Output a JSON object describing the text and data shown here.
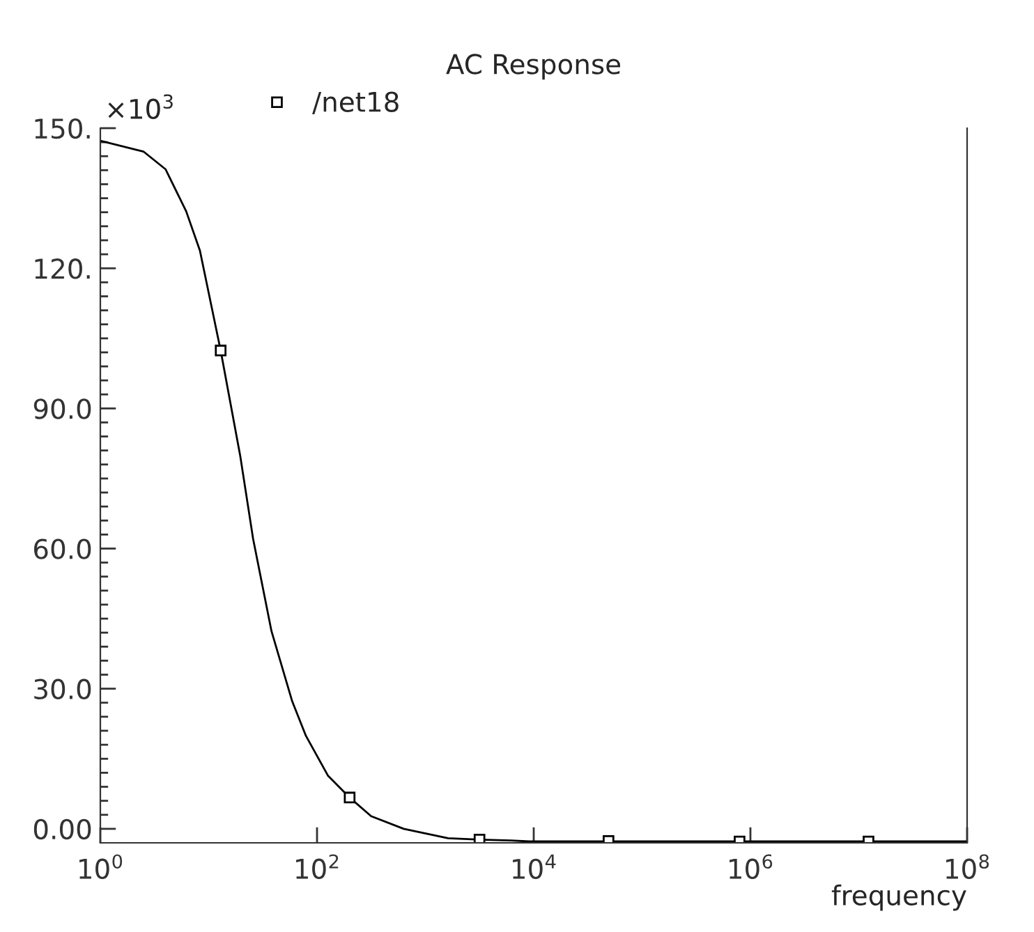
{
  "chart_data": {
    "type": "line",
    "title": "AC Response",
    "xlabel": "frequency",
    "annotations": [
      "×10$^{3}$"
    ],
    "log": "x",
    "xlim": [
      1,
      100000000
    ],
    "ylim": [
      -3,
      150
    ],
    "xticks": [
      {
        "value": 1,
        "label": "10$^{0}$"
      },
      {
        "value": 100,
        "label": "10$^{2}$"
      },
      {
        "value": 10000,
        "label": "10$^{4}$"
      },
      {
        "value": 1000000,
        "label": "10$^{6}$"
      },
      {
        "value": 100000000,
        "label": "10$^{8}$"
      }
    ],
    "yticks": [
      {
        "value": 0,
        "label": "0.00"
      },
      {
        "value": 3,
        "label": null
      },
      {
        "value": 6,
        "label": null
      },
      {
        "value": 9,
        "label": null
      },
      {
        "value": 12,
        "label": null
      },
      {
        "value": 15,
        "label": null
      },
      {
        "value": 18,
        "label": null
      },
      {
        "value": 21,
        "label": null
      },
      {
        "value": 24,
        "label": null
      },
      {
        "value": 27,
        "label": null
      },
      {
        "value": 30,
        "label": "30.0"
      },
      {
        "value": 33,
        "label": null
      },
      {
        "value": 36,
        "label": null
      },
      {
        "value": 39,
        "label": null
      },
      {
        "value": 42,
        "label": null
      },
      {
        "value": 45,
        "label": null
      },
      {
        "value": 48,
        "label": null
      },
      {
        "value": 51,
        "label": null
      },
      {
        "value": 54,
        "label": null
      },
      {
        "value": 57,
        "label": null
      },
      {
        "value": 60,
        "label": "60.0"
      },
      {
        "value": 63,
        "label": null
      },
      {
        "value": 66,
        "label": null
      },
      {
        "value": 69,
        "label": null
      },
      {
        "value": 72,
        "label": null
      },
      {
        "value": 75,
        "label": null
      },
      {
        "value": 78,
        "label": null
      },
      {
        "value": 81,
        "label": null
      },
      {
        "value": 84,
        "label": null
      },
      {
        "value": 87,
        "label": null
      },
      {
        "value": 90,
        "label": "90.0"
      },
      {
        "value": 93,
        "label": null
      },
      {
        "value": 96,
        "label": null
      },
      {
        "value": 99,
        "label": null
      },
      {
        "value": 102,
        "label": null
      },
      {
        "value": 105,
        "label": null
      },
      {
        "value": 108,
        "label": null
      },
      {
        "value": 111,
        "label": null
      },
      {
        "value": 114,
        "label": null
      },
      {
        "value": 117,
        "label": null
      },
      {
        "value": 120,
        "label": "120."
      },
      {
        "value": 123,
        "label": null
      },
      {
        "value": 126,
        "label": null
      },
      {
        "value": 129,
        "label": null
      },
      {
        "value": 132,
        "label": null
      },
      {
        "value": 135,
        "label": null
      },
      {
        "value": 138,
        "label": null
      },
      {
        "value": 141,
        "label": null
      },
      {
        "value": 144,
        "label": null
      },
      {
        "value": 147,
        "label": null
      },
      {
        "value": 150,
        "label": "150."
      }
    ],
    "grid": false,
    "legend": "top",
    "series": [
      {
        "color": "#000000",
        "marker": "none",
        "x": [
          1,
          2.5,
          4,
          6.2,
          8.3,
          12.9,
          19.5,
          25.7,
          38,
          59,
          79,
          126,
          200,
          316,
          631,
          1620,
          3160,
          6170,
          9120,
          100000,
          10000000,
          100000000
        ],
        "values": [
          147.3,
          145,
          141.2,
          132.2,
          123.8,
          102.4,
          80,
          62.1,
          42.3,
          27.3,
          19.9,
          11.4,
          6.7,
          2.7,
          0,
          -2.0,
          -2.3,
          -2.5,
          -2.7,
          -2.7,
          -2.7,
          -2.7
        ]
      },
      {
        "type": "scatter",
        "name": "/net18",
        "color": "#000000",
        "marker": "square",
        "x": [
          12.9,
          200,
          3160,
          49000,
          794000,
          12300000
        ],
        "values": [
          102.4,
          6.7,
          -2.3,
          -2.6,
          -2.7,
          -2.7
        ]
      }
    ]
  }
}
